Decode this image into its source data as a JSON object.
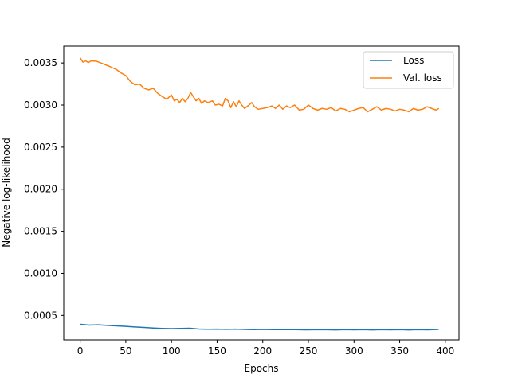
{
  "chart_data": {
    "type": "line",
    "title": "",
    "xlabel": "Epochs",
    "ylabel": "Negative log-likelihood",
    "xlim": [
      -18,
      415
    ],
    "ylim": [
      0.00021,
      0.0037
    ],
    "xticks": [
      0,
      50,
      100,
      150,
      200,
      250,
      300,
      350,
      400
    ],
    "yticks": [
      0.0005,
      0.001,
      0.0015,
      0.002,
      0.0025,
      0.003,
      0.0035
    ],
    "xtick_labels": [
      "0",
      "50",
      "100",
      "150",
      "200",
      "250",
      "300",
      "350",
      "400"
    ],
    "ytick_labels": [
      "0.0005",
      "0.0010",
      "0.0015",
      "0.0020",
      "0.0025",
      "0.0030",
      "0.0035"
    ],
    "grid": false,
    "legend_position": "top-right",
    "series": [
      {
        "name": "Loss",
        "color": "#1f77b4",
        "points": [
          [
            0,
            0.000395
          ],
          [
            10,
            0.000385
          ],
          [
            20,
            0.000388
          ],
          [
            30,
            0.000381
          ],
          [
            40,
            0.000375
          ],
          [
            50,
            0.00037
          ],
          [
            60,
            0.000363
          ],
          [
            70,
            0.000356
          ],
          [
            80,
            0.00035
          ],
          [
            90,
            0.000345
          ],
          [
            100,
            0.000342
          ],
          [
            110,
            0.000345
          ],
          [
            120,
            0.000347
          ],
          [
            130,
            0.000338
          ],
          [
            140,
            0.000335
          ],
          [
            150,
            0.000337
          ],
          [
            160,
            0.000334
          ],
          [
            170,
            0.000336
          ],
          [
            180,
            0.000333
          ],
          [
            190,
            0.00033
          ],
          [
            200,
            0.000333
          ],
          [
            210,
            0.000331
          ],
          [
            220,
            0.00033
          ],
          [
            230,
            0.000332
          ],
          [
            240,
            0.000329
          ],
          [
            250,
            0.000328
          ],
          [
            260,
            0.000331
          ],
          [
            270,
            0.000329
          ],
          [
            280,
            0.000327
          ],
          [
            290,
            0.00033
          ],
          [
            300,
            0.000328
          ],
          [
            310,
            0.00033
          ],
          [
            320,
            0.000327
          ],
          [
            330,
            0.000331
          ],
          [
            340,
            0.000328
          ],
          [
            350,
            0.00033
          ],
          [
            360,
            0.000327
          ],
          [
            370,
            0.000331
          ],
          [
            380,
            0.000328
          ],
          [
            390,
            0.000332
          ],
          [
            393,
            0.000335
          ]
        ]
      },
      {
        "name": "Val. loss",
        "color": "#ff7f0e",
        "points": [
          [
            0,
            0.00356
          ],
          [
            3,
            0.00351
          ],
          [
            6,
            0.003525
          ],
          [
            9,
            0.003505
          ],
          [
            12,
            0.003525
          ],
          [
            18,
            0.00352
          ],
          [
            25,
            0.00349
          ],
          [
            32,
            0.00346
          ],
          [
            40,
            0.00342
          ],
          [
            45,
            0.00338
          ],
          [
            50,
            0.00335
          ],
          [
            55,
            0.00328
          ],
          [
            60,
            0.00324
          ],
          [
            65,
            0.00325
          ],
          [
            70,
            0.0032
          ],
          [
            75,
            0.00318
          ],
          [
            80,
            0.0032
          ],
          [
            85,
            0.00314
          ],
          [
            90,
            0.0031
          ],
          [
            95,
            0.00307
          ],
          [
            100,
            0.00312
          ],
          [
            103,
            0.00305
          ],
          [
            106,
            0.00307
          ],
          [
            109,
            0.00303
          ],
          [
            112,
            0.00308
          ],
          [
            115,
            0.00304
          ],
          [
            118,
            0.00308
          ],
          [
            121,
            0.00315
          ],
          [
            124,
            0.0031
          ],
          [
            127,
            0.00305
          ],
          [
            130,
            0.00308
          ],
          [
            133,
            0.00302
          ],
          [
            136,
            0.00305
          ],
          [
            140,
            0.00303
          ],
          [
            145,
            0.00305
          ],
          [
            148,
            0.003
          ],
          [
            152,
            0.00301
          ],
          [
            156,
            0.00299
          ],
          [
            159,
            0.00308
          ],
          [
            162,
            0.00305
          ],
          [
            165,
            0.00297
          ],
          [
            168,
            0.00304
          ],
          [
            171,
            0.00298
          ],
          [
            174,
            0.00305
          ],
          [
            177,
            0.003
          ],
          [
            180,
            0.00296
          ],
          [
            185,
            0.003
          ],
          [
            188,
            0.00303
          ],
          [
            191,
            0.00298
          ],
          [
            195,
            0.00295
          ],
          [
            200,
            0.00296
          ],
          [
            205,
            0.00297
          ],
          [
            210,
            0.00299
          ],
          [
            214,
            0.00296
          ],
          [
            218,
            0.003
          ],
          [
            222,
            0.00295
          ],
          [
            226,
            0.00299
          ],
          [
            230,
            0.00297
          ],
          [
            235,
            0.003
          ],
          [
            240,
            0.00294
          ],
          [
            245,
            0.00295
          ],
          [
            250,
            0.003
          ],
          [
            255,
            0.00296
          ],
          [
            260,
            0.00294
          ],
          [
            265,
            0.00296
          ],
          [
            270,
            0.00295
          ],
          [
            275,
            0.00297
          ],
          [
            280,
            0.00293
          ],
          [
            285,
            0.00296
          ],
          [
            290,
            0.00295
          ],
          [
            295,
            0.00292
          ],
          [
            300,
            0.00294
          ],
          [
            305,
            0.00296
          ],
          [
            310,
            0.00297
          ],
          [
            315,
            0.00292
          ],
          [
            320,
            0.00295
          ],
          [
            325,
            0.00298
          ],
          [
            330,
            0.00294
          ],
          [
            335,
            0.00296
          ],
          [
            340,
            0.00295
          ],
          [
            345,
            0.00293
          ],
          [
            350,
            0.00295
          ],
          [
            355,
            0.00294
          ],
          [
            360,
            0.00292
          ],
          [
            365,
            0.00296
          ],
          [
            370,
            0.00294
          ],
          [
            375,
            0.00295
          ],
          [
            380,
            0.00298
          ],
          [
            385,
            0.00296
          ],
          [
            390,
            0.00294
          ],
          [
            393,
            0.00296
          ]
        ]
      }
    ]
  }
}
